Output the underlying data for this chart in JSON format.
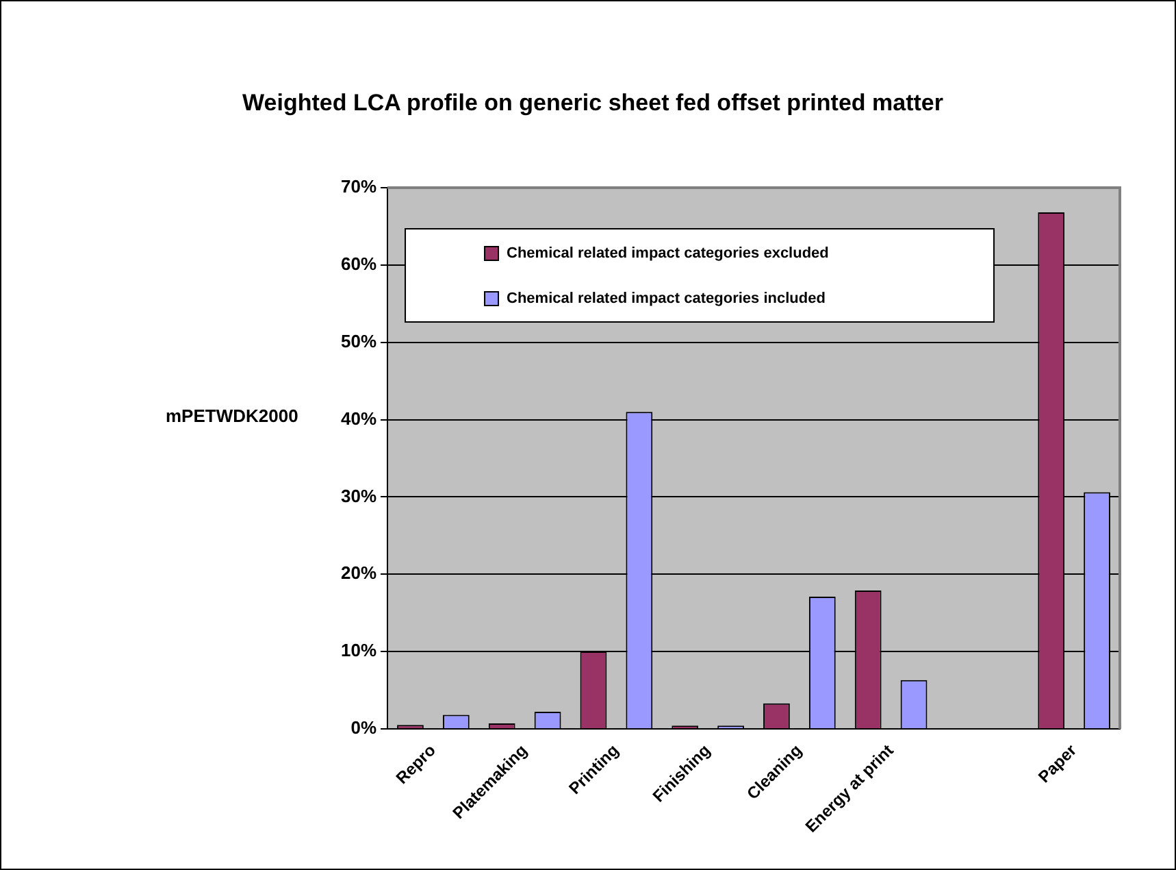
{
  "chart_data": {
    "type": "bar",
    "title": "Weighted LCA profile on generic sheet fed offset printed matter",
    "ylabel": "mPETWDK2000",
    "categories": [
      "Repro",
      "Platemaking",
      "Printing",
      "Finishing",
      "Cleaning",
      "Energy at print",
      null,
      "Paper"
    ],
    "series": [
      {
        "name": "Chemical related impact categories excluded",
        "color": "#993366",
        "values": [
          0.5,
          0.7,
          10,
          0.4,
          3.3,
          17.9,
          null,
          66.8
        ]
      },
      {
        "name": "Chemical related impact categories included",
        "color": "#9999ff",
        "values": [
          1.8,
          2.2,
          41,
          0.4,
          17.1,
          6.3,
          null,
          30.6
        ]
      }
    ],
    "ylim": [
      0,
      70
    ],
    "yticks": [
      {
        "value": 0,
        "label": "0%"
      },
      {
        "value": 10,
        "label": "10%"
      },
      {
        "value": 20,
        "label": "20%"
      },
      {
        "value": 30,
        "label": "30%"
      },
      {
        "value": 40,
        "label": "40%"
      },
      {
        "value": 50,
        "label": "50%"
      },
      {
        "value": 60,
        "label": "60%"
      },
      {
        "value": 70,
        "label": "70%"
      }
    ],
    "grid": "y",
    "legend": "top"
  }
}
